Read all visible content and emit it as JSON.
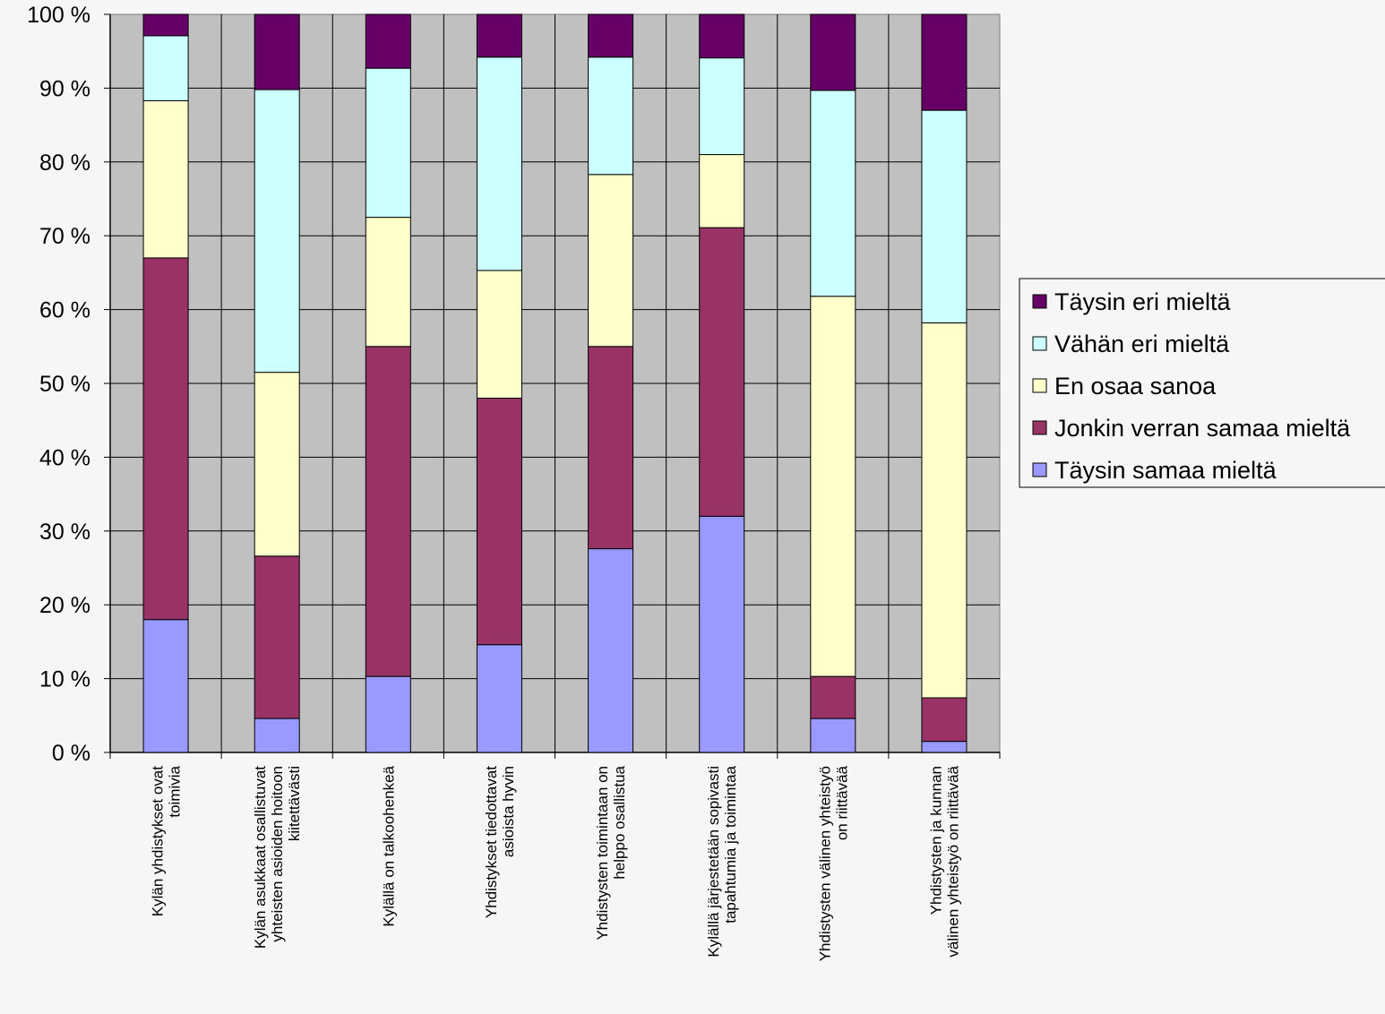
{
  "chart_data": {
    "type": "bar",
    "stacked": true,
    "percent_stacked": true,
    "title": "",
    "xlabel": "",
    "ylabel": "",
    "ylim": [
      0,
      100
    ],
    "y_ticks": [
      "0 %",
      "10 %",
      "20 %",
      "30 %",
      "40 %",
      "50 %",
      "60 %",
      "70 %",
      "80 %",
      "90 %",
      "100 %"
    ],
    "grid": true,
    "legend_position": "right",
    "categories": [
      [
        "Kylän yhdistykset ovat",
        "toimivia"
      ],
      [
        "Kylän asukkaat osallistuvat",
        "yhteisten asioiden hoitoon",
        "kiitettävästi"
      ],
      [
        "Kylällä on talkoohenkeä"
      ],
      [
        "Yhdistykset tiedottavat",
        "asioista hyvin"
      ],
      [
        "Yhdistysten toimintaan on",
        "helppo osallistua"
      ],
      [
        "Kylällä järjestetään sopivasti",
        "tapahtumia ja toimintaa"
      ],
      [
        "Yhdistysten välinen yhteistyö",
        "on riittävää"
      ],
      [
        "Yhdistysten ja kunnan",
        "välinen yhteistyö on riittävää"
      ]
    ],
    "series": [
      {
        "name": "Täysin samaa mieltä",
        "color": "#9999ff",
        "values": [
          18,
          4.6,
          10.3,
          14.6,
          27.6,
          32,
          4.6,
          1.5
        ]
      },
      {
        "name": "Jonkin verran samaa mieltä",
        "color": "#993366",
        "values": [
          49,
          22,
          44.7,
          33.4,
          27.4,
          39.1,
          5.7,
          5.9
        ]
      },
      {
        "name": "En osaa sanoa",
        "color": "#ffffcc",
        "values": [
          21.3,
          24.9,
          17.5,
          17.3,
          23.3,
          9.9,
          51.5,
          50.8
        ]
      },
      {
        "name": "Vähän eri mieltä",
        "color": "#ccffff",
        "values": [
          8.8,
          38.3,
          20.2,
          28.9,
          15.9,
          13.1,
          27.9,
          28.8
        ]
      },
      {
        "name": "Täysin eri mieltä",
        "color": "#660066",
        "values": [
          2.9,
          10.2,
          7.3,
          5.8,
          5.8,
          5.9,
          10.3,
          13
        ]
      }
    ],
    "plot_background": "#c0c0c0"
  }
}
